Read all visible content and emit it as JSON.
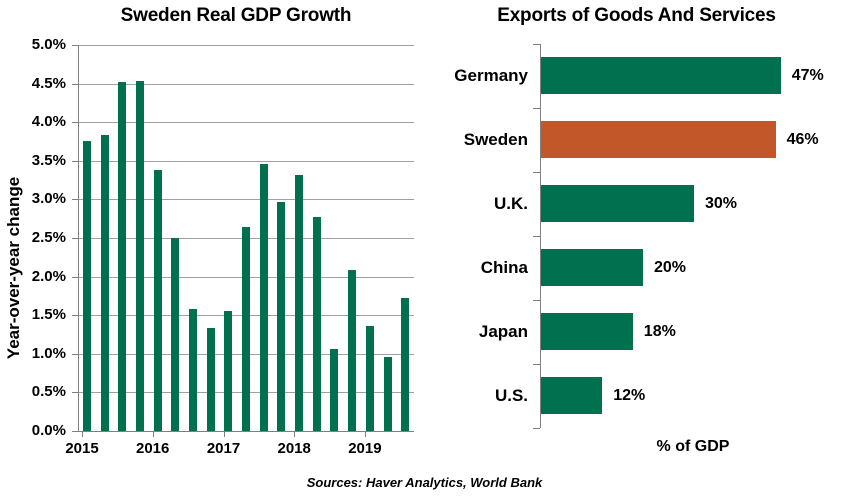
{
  "source_note": "Sources: Haver Analytics, World Bank",
  "colors": {
    "bar_green": "#00704F",
    "bar_orange": "#C2572A",
    "gridline": "#A0A0A0",
    "axis": "#7F7F7F",
    "text": "#000000"
  },
  "chart_data": [
    {
      "type": "bar",
      "title": "Sweden Real GDP Growth",
      "ylabel": "Year-over-year change",
      "xlabel": "",
      "x": [
        "2015 Q1",
        "2015 Q2",
        "2015 Q3",
        "2015 Q4",
        "2016 Q1",
        "2016 Q2",
        "2016 Q3",
        "2016 Q4",
        "2017 Q1",
        "2017 Q2",
        "2017 Q3",
        "2017 Q4",
        "2018 Q1",
        "2018 Q2",
        "2018 Q3",
        "2018 Q4",
        "2019 Q1",
        "2019 Q2",
        "2019 Q3"
      ],
      "values": [
        3.76,
        3.83,
        4.52,
        4.53,
        3.38,
        2.5,
        1.58,
        1.34,
        1.55,
        2.64,
        3.46,
        2.97,
        3.32,
        2.77,
        1.06,
        2.09,
        1.36,
        0.96,
        1.72
      ],
      "ylim": [
        0,
        5
      ],
      "ytick_step": 0.5,
      "ytick_labels": [
        "0.0%",
        "0.5%",
        "1.0%",
        "1.5%",
        "2.0%",
        "2.5%",
        "3.0%",
        "3.5%",
        "4.0%",
        "4.5%",
        "5.0%"
      ],
      "xtick_labels": [
        "2015",
        "2016",
        "2017",
        "2018",
        "2019"
      ],
      "xtick_category_indexes": [
        0,
        4,
        8,
        12,
        16
      ],
      "grid": true,
      "legend": false,
      "bar_color": "#00704F"
    },
    {
      "type": "bar",
      "orientation": "horizontal",
      "title": "Exports of Goods And Services",
      "xlabel": "% of GDP",
      "categories": [
        "Germany",
        "Sweden",
        "U.K.",
        "China",
        "Japan",
        "U.S."
      ],
      "values": [
        47,
        46,
        30,
        20,
        18,
        12
      ],
      "value_labels": [
        "47%",
        "46%",
        "30%",
        "20%",
        "18%",
        "12%"
      ],
      "xlim": [
        0,
        60
      ],
      "grid": false,
      "legend": false,
      "highlight_category": "Sweden",
      "bar_colors": [
        "#00704F",
        "#C2572A",
        "#00704F",
        "#00704F",
        "#00704F",
        "#00704F"
      ]
    }
  ]
}
